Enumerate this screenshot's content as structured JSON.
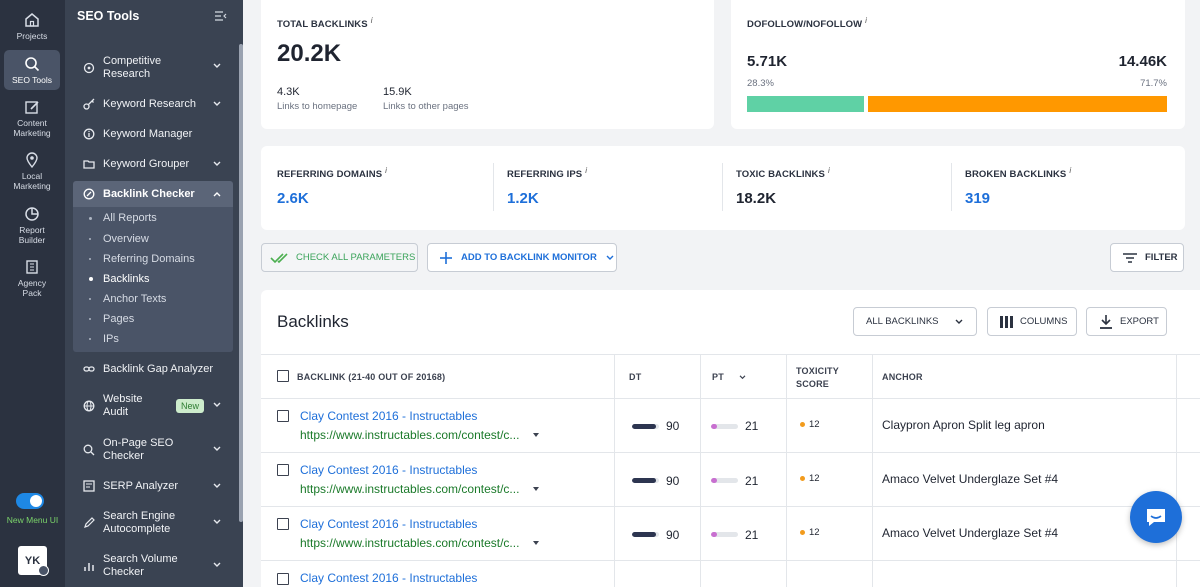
{
  "rail": [
    {
      "label": "Projects",
      "icon": "home-icon"
    },
    {
      "label": "SEO Tools",
      "icon": "search-icon",
      "active": true
    },
    {
      "label": "Content Marketing",
      "icon": "edit-icon"
    },
    {
      "label": "Local Marketing",
      "icon": "location-pin-icon"
    },
    {
      "label": "Report Builder",
      "icon": "pie-chart-icon"
    },
    {
      "label": "Agency Pack",
      "icon": "building-icon"
    }
  ],
  "toggle_label": "New Menu UI",
  "avatar": "YK",
  "sidebar": {
    "title": "SEO Tools",
    "items": [
      {
        "label1": "Competitive",
        "label2": "Research"
      },
      {
        "label1": "Keyword Research"
      },
      {
        "label1": "Keyword Manager"
      },
      {
        "label1": "Keyword Grouper"
      },
      {
        "label1": "Backlink Checker"
      },
      {
        "label1": "Backlink Gap Analyzer"
      },
      {
        "label1": "Website",
        "label2": "Audit"
      },
      {
        "label1": "On-Page SEO",
        "label2": "Checker"
      },
      {
        "label1": "SERP Analyzer"
      },
      {
        "label1": "Search Engine",
        "label2": "Autocomplete"
      },
      {
        "label1": "Search Volume",
        "label2": "Checker"
      }
    ],
    "sub_items": [
      "All Reports",
      "Overview",
      "Referring Domains",
      "Backlinks",
      "Anchor Texts",
      "Pages",
      "IPs"
    ],
    "new_badge": "New"
  },
  "total": {
    "label": "TOTAL BACKLINKS",
    "info": "i",
    "value": "20.2K",
    "homepage_value": "4.3K",
    "homepage_label": "Links to homepage",
    "other_value": "15.9K",
    "other_label": "Links to other pages"
  },
  "follow": {
    "label": "DOFOLLOW/NOFOLLOW",
    "info": "i",
    "dofollow_value": "5.71K",
    "dofollow_pct": "28.3%",
    "nofollow_value": "14.46K",
    "nofollow_pct": "71.7%",
    "dofollow_fraction": 0.283,
    "dofollow_color": "#5fd1a5",
    "nofollow_color": "#ff9800"
  },
  "stats": [
    {
      "label": "REFERRING DOMAINS",
      "value": "2.6K",
      "link": true
    },
    {
      "label": "REFERRING IPS",
      "value": "1.2K",
      "link": true
    },
    {
      "label": "TOXIC BACKLINKS",
      "value": "18.2K",
      "link": false
    },
    {
      "label": "BROKEN BACKLINKS",
      "value": "319",
      "link": true
    }
  ],
  "actions": {
    "check_all": "CHECK ALL PARAMETERS",
    "add_monitor": "ADD TO BACKLINK MONITOR",
    "filter": "FILTER"
  },
  "table": {
    "title": "Backlinks",
    "filter_select": "ALL BACKLINKS",
    "columns_btn": "COLUMNS",
    "export_btn": "EXPORT",
    "headers": {
      "backlink": "BACKLINK (21-40 OUT OF 20168)",
      "dt": "DT",
      "pt": "PT",
      "toxicity1": "TOXICITY",
      "toxicity2": "SCORE",
      "anchor": "ANCHOR"
    },
    "rows": [
      {
        "title": "Clay Contest 2016 - Instructables",
        "url": "https://www.instructables.com/contest/c...",
        "dt": 90,
        "pt": 21,
        "toxicity": "12",
        "anchor": "Claypron Apron Split leg apron"
      },
      {
        "title": "Clay Contest 2016 - Instructables",
        "url": "https://www.instructables.com/contest/c...",
        "dt": 90,
        "pt": 21,
        "toxicity": "12",
        "anchor": "Amaco Velvet Underglaze Set #4"
      },
      {
        "title": "Clay Contest 2016 - Instructables",
        "url": "https://www.instructables.com/contest/c...",
        "dt": 90,
        "pt": 21,
        "toxicity": "12",
        "anchor": "Amaco Velvet Underglaze Set #4"
      },
      {
        "title": "Clay Contest 2016 - Instructables",
        "url": "",
        "dt": "",
        "pt": "",
        "toxicity": "",
        "anchor": ""
      }
    ]
  }
}
